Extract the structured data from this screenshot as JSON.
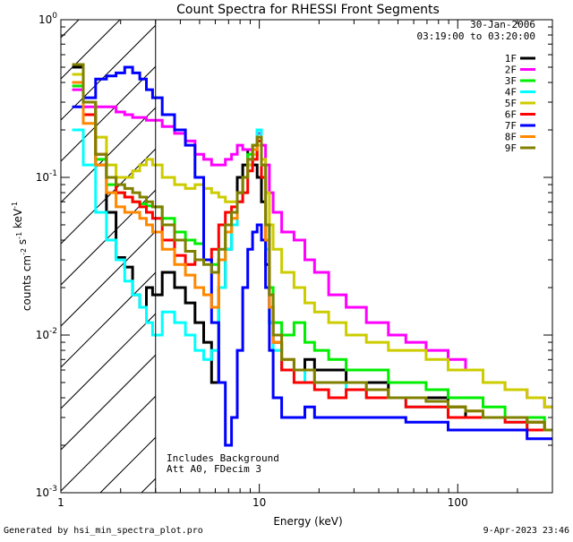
{
  "chart_data": {
    "type": "line",
    "title": "Count Spectra for RHESSI Front Segments",
    "xlabel": "Energy (keV)",
    "ylabel": "counts cm^-2 s^-1 keV^-1",
    "xscale": "log",
    "yscale": "log",
    "xlim": [
      1.0,
      300.0
    ],
    "ylim": [
      0.001,
      1.0
    ],
    "x_tick_labels": [
      "1",
      "10",
      "100"
    ],
    "y_tick_labels": [
      "10^-3",
      "10^-2",
      "10^-1",
      "10^0"
    ],
    "date": "30-Jan-2006",
    "time_range": "03:19:00 to 03:20:00",
    "legend_position": "top-right",
    "shaded_region_xmax": 3.0,
    "annotations": [
      "Includes Background",
      "Att A0, FDecim 3"
    ],
    "series": [
      {
        "name": "1F",
        "color": "#000000",
        "x": [
          1.2,
          1.4,
          1.6,
          1.8,
          2.0,
          2.2,
          2.4,
          2.6,
          2.8,
          3.0,
          3.5,
          4.0,
          4.5,
          5.0,
          5.5,
          6.0,
          6.5,
          7.0,
          7.5,
          8.0,
          8.5,
          9.0,
          9.5,
          10.0,
          10.5,
          11.0,
          11.5,
          12,
          14,
          16,
          18,
          20,
          25,
          30,
          40,
          50,
          60,
          80,
          100,
          120,
          150,
          200,
          250,
          300
        ],
        "y": [
          0.5,
          0.3,
          0.12,
          0.06,
          0.031,
          0.027,
          0.018,
          0.015,
          0.02,
          0.018,
          0.025,
          0.02,
          0.016,
          0.012,
          0.009,
          0.005,
          0.02,
          0.035,
          0.05,
          0.1,
          0.12,
          0.15,
          0.12,
          0.1,
          0.07,
          0.028,
          0.012,
          0.009,
          0.006,
          0.006,
          0.007,
          0.006,
          0.006,
          0.005,
          0.005,
          0.004,
          0.004,
          0.004,
          0.0035,
          0.003,
          0.003,
          0.003,
          0.0028,
          0.0025
        ]
      },
      {
        "name": "2F",
        "color": "#ff00ff",
        "x": [
          1.2,
          1.4,
          1.6,
          1.8,
          2.0,
          2.2,
          2.4,
          2.6,
          2.8,
          3.0,
          3.5,
          4.0,
          4.5,
          5.0,
          5.5,
          6.0,
          6.5,
          7.0,
          7.5,
          8.0,
          8.5,
          9.0,
          9.5,
          10.0,
          10.5,
          11.0,
          11.5,
          12,
          14,
          16,
          18,
          20,
          25,
          30,
          40,
          50,
          60,
          80,
          100,
          120,
          150,
          200,
          250,
          300
        ],
        "y": [
          0.36,
          0.28,
          0.28,
          0.28,
          0.26,
          0.25,
          0.24,
          0.24,
          0.23,
          0.23,
          0.21,
          0.19,
          0.17,
          0.14,
          0.13,
          0.12,
          0.12,
          0.13,
          0.14,
          0.16,
          0.15,
          0.15,
          0.16,
          0.19,
          0.16,
          0.12,
          0.08,
          0.06,
          0.045,
          0.04,
          0.03,
          0.025,
          0.018,
          0.015,
          0.012,
          0.01,
          0.009,
          0.008,
          0.007,
          0.006,
          0.005,
          0.0045,
          0.004,
          0.0035
        ]
      },
      {
        "name": "3F",
        "color": "#00ee00",
        "x": [
          1.2,
          1.4,
          1.6,
          1.8,
          2.0,
          2.2,
          2.4,
          2.6,
          2.8,
          3.0,
          3.5,
          4.0,
          4.5,
          5.0,
          5.5,
          6.0,
          6.5,
          7.0,
          7.5,
          8.0,
          8.5,
          9.0,
          9.5,
          10.0,
          10.5,
          11.0,
          11.5,
          12,
          14,
          16,
          18,
          20,
          25,
          30,
          40,
          50,
          60,
          80,
          100,
          120,
          150,
          200,
          250,
          300
        ],
        "y": [
          0.38,
          0.25,
          0.13,
          0.09,
          0.08,
          0.075,
          0.07,
          0.068,
          0.066,
          0.065,
          0.055,
          0.045,
          0.04,
          0.038,
          0.03,
          0.028,
          0.03,
          0.045,
          0.06,
          0.08,
          0.1,
          0.14,
          0.16,
          0.2,
          0.12,
          0.05,
          0.02,
          0.012,
          0.01,
          0.012,
          0.009,
          0.008,
          0.007,
          0.006,
          0.006,
          0.005,
          0.005,
          0.0045,
          0.004,
          0.004,
          0.0035,
          0.003,
          0.003,
          0.0025
        ]
      },
      {
        "name": "4F",
        "color": "#00ffff",
        "x": [
          1.2,
          1.4,
          1.6,
          1.8,
          2.0,
          2.2,
          2.4,
          2.6,
          2.8,
          3.0,
          3.5,
          4.0,
          4.5,
          5.0,
          5.5,
          6.0,
          6.5,
          7.0,
          7.5,
          8.0,
          8.5,
          9.0,
          9.5,
          10.0,
          10.5,
          11.0,
          11.5,
          12,
          14,
          16,
          18,
          20,
          25,
          30,
          40,
          50,
          60,
          80,
          100,
          120,
          150,
          200,
          250,
          300
        ],
        "y": [
          0.2,
          0.12,
          0.06,
          0.04,
          0.03,
          0.022,
          0.018,
          0.015,
          0.012,
          0.01,
          0.014,
          0.012,
          0.01,
          0.008,
          0.007,
          0.008,
          0.02,
          0.035,
          0.05,
          0.07,
          0.1,
          0.12,
          0.14,
          0.2,
          0.12,
          0.035,
          0.012,
          0.008,
          0.006,
          0.006,
          0.005,
          0.005,
          0.005,
          0.0045,
          0.004,
          0.004,
          0.0035,
          0.0035,
          0.003,
          0.003,
          0.003,
          0.0028,
          0.0025,
          0.0025
        ]
      },
      {
        "name": "5F",
        "color": "#cccc00",
        "x": [
          1.2,
          1.4,
          1.6,
          1.8,
          2.0,
          2.2,
          2.4,
          2.6,
          2.8,
          3.0,
          3.5,
          4.0,
          4.5,
          5.0,
          5.5,
          6.0,
          6.5,
          7.0,
          7.5,
          8.0,
          8.5,
          9.0,
          9.5,
          10.0,
          10.5,
          11.0,
          11.5,
          12,
          14,
          16,
          18,
          20,
          25,
          30,
          40,
          50,
          60,
          80,
          100,
          120,
          150,
          200,
          250,
          300
        ],
        "y": [
          0.45,
          0.3,
          0.18,
          0.12,
          0.1,
          0.1,
          0.11,
          0.12,
          0.13,
          0.12,
          0.1,
          0.09,
          0.085,
          0.09,
          0.085,
          0.08,
          0.075,
          0.07,
          0.07,
          0.08,
          0.1,
          0.12,
          0.14,
          0.16,
          0.13,
          0.08,
          0.05,
          0.035,
          0.025,
          0.02,
          0.016,
          0.014,
          0.012,
          0.01,
          0.009,
          0.008,
          0.008,
          0.007,
          0.006,
          0.006,
          0.005,
          0.0045,
          0.004,
          0.0035
        ]
      },
      {
        "name": "6F",
        "color": "#ff0000",
        "x": [
          1.2,
          1.4,
          1.6,
          1.8,
          2.0,
          2.2,
          2.4,
          2.6,
          2.8,
          3.0,
          3.5,
          4.0,
          4.5,
          5.0,
          5.5,
          6.0,
          6.5,
          7.0,
          7.5,
          8.0,
          8.5,
          9.0,
          9.5,
          10.0,
          10.5,
          11.0,
          11.5,
          12,
          14,
          16,
          18,
          20,
          25,
          30,
          40,
          50,
          60,
          80,
          100,
          120,
          150,
          200,
          250,
          300
        ],
        "y": [
          0.4,
          0.25,
          0.14,
          0.1,
          0.08,
          0.075,
          0.07,
          0.065,
          0.06,
          0.055,
          0.04,
          0.032,
          0.028,
          0.03,
          0.03,
          0.035,
          0.05,
          0.06,
          0.065,
          0.07,
          0.08,
          0.11,
          0.13,
          0.17,
          0.1,
          0.04,
          0.015,
          0.009,
          0.006,
          0.005,
          0.005,
          0.0045,
          0.004,
          0.0045,
          0.004,
          0.004,
          0.0035,
          0.0035,
          0.003,
          0.003,
          0.003,
          0.0028,
          0.0025,
          0.0025
        ]
      },
      {
        "name": "7F",
        "color": "#0000ff",
        "x": [
          1.2,
          1.4,
          1.6,
          1.8,
          2.0,
          2.2,
          2.4,
          2.6,
          2.8,
          3.0,
          3.5,
          4.0,
          4.5,
          5.0,
          5.5,
          6.0,
          6.5,
          7.0,
          7.5,
          8.0,
          8.5,
          9.0,
          9.5,
          10.0,
          10.5,
          11.0,
          11.5,
          12,
          14,
          16,
          18,
          20,
          25,
          30,
          40,
          50,
          60,
          80,
          100,
          120,
          150,
          200,
          250,
          300
        ],
        "y": [
          0.28,
          0.32,
          0.42,
          0.44,
          0.46,
          0.5,
          0.46,
          0.42,
          0.36,
          0.32,
          0.25,
          0.2,
          0.16,
          0.1,
          0.03,
          0.012,
          0.005,
          0.002,
          0.003,
          0.008,
          0.02,
          0.035,
          0.045,
          0.05,
          0.04,
          0.02,
          0.008,
          0.004,
          0.003,
          0.003,
          0.0035,
          0.003,
          0.003,
          0.003,
          0.003,
          0.003,
          0.0028,
          0.0028,
          0.0025,
          0.0025,
          0.0025,
          0.0025,
          0.0022,
          0.0022
        ]
      },
      {
        "name": "8F",
        "color": "#ff8800",
        "x": [
          1.2,
          1.4,
          1.6,
          1.8,
          2.0,
          2.2,
          2.4,
          2.6,
          2.8,
          3.0,
          3.5,
          4.0,
          4.5,
          5.0,
          5.5,
          6.0,
          6.5,
          7.0,
          7.5,
          8.0,
          8.5,
          9.0,
          9.5,
          10.0,
          10.5,
          11.0,
          11.5,
          12,
          14,
          16,
          18,
          20,
          25,
          30,
          40,
          50,
          60,
          80,
          100,
          120,
          150,
          200,
          250,
          300
        ],
        "y": [
          0.4,
          0.22,
          0.12,
          0.08,
          0.065,
          0.06,
          0.06,
          0.055,
          0.05,
          0.045,
          0.035,
          0.028,
          0.024,
          0.02,
          0.018,
          0.015,
          0.03,
          0.045,
          0.055,
          0.08,
          0.1,
          0.13,
          0.15,
          0.18,
          0.12,
          0.04,
          0.015,
          0.009,
          0.007,
          0.006,
          0.006,
          0.005,
          0.005,
          0.005,
          0.0045,
          0.004,
          0.004,
          0.0038,
          0.0035,
          0.0033,
          0.003,
          0.003,
          0.0028,
          0.0025
        ]
      },
      {
        "name": "9F",
        "color": "#808000",
        "x": [
          1.2,
          1.4,
          1.6,
          1.8,
          2.0,
          2.2,
          2.4,
          2.6,
          2.8,
          3.0,
          3.5,
          4.0,
          4.5,
          5.0,
          5.5,
          6.0,
          6.5,
          7.0,
          7.5,
          8.0,
          8.5,
          9.0,
          9.5,
          10.0,
          10.5,
          11.0,
          11.5,
          12,
          14,
          16,
          18,
          20,
          25,
          30,
          40,
          50,
          60,
          80,
          100,
          120,
          150,
          200,
          250,
          300
        ],
        "y": [
          0.52,
          0.3,
          0.14,
          0.1,
          0.09,
          0.085,
          0.08,
          0.075,
          0.07,
          0.065,
          0.05,
          0.04,
          0.034,
          0.03,
          0.028,
          0.025,
          0.035,
          0.05,
          0.06,
          0.08,
          0.1,
          0.13,
          0.16,
          0.18,
          0.12,
          0.05,
          0.018,
          0.01,
          0.007,
          0.006,
          0.006,
          0.005,
          0.005,
          0.005,
          0.0045,
          0.004,
          0.004,
          0.0038,
          0.0035,
          0.0033,
          0.003,
          0.003,
          0.0028,
          0.0025
        ]
      }
    ]
  },
  "footer": {
    "generated_by": "Generated by hsi_min_spectra_plot.pro",
    "timestamp": "9-Apr-2023 23:46"
  }
}
